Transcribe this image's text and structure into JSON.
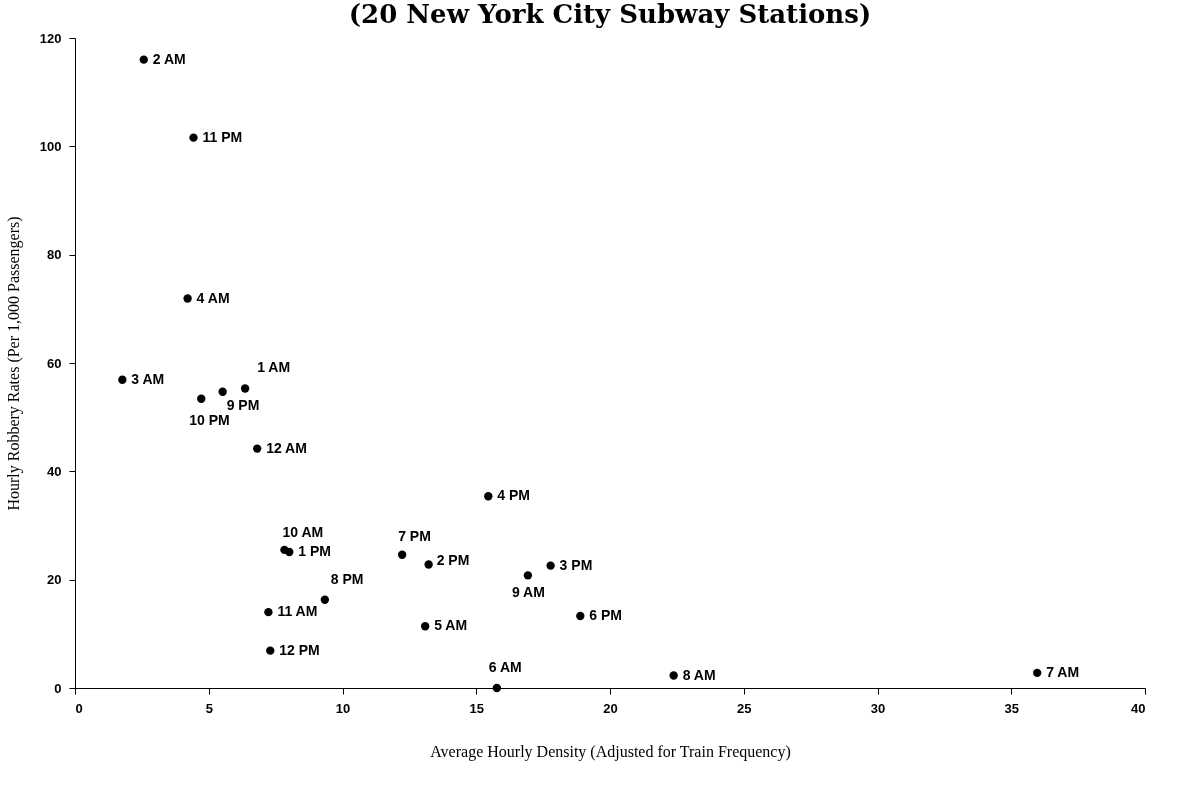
{
  "chart_data": {
    "type": "scatter",
    "title": "(20 New York City Subway Stations)",
    "xlabel": "Average Hourly Density (Adjusted for Train Frequency)",
    "ylabel": "Hourly Robbery Rates (Per 1,000 Passengers)",
    "x": [
      2.57,
      4.43,
      4.21,
      1.77,
      6.36,
      5.52,
      4.72,
      6.81,
      15.45,
      7.83,
      8.01,
      12.23,
      13.22,
      17.78,
      16.93,
      9.34,
      7.23,
      18.89,
      13.09,
      7.3,
      15.77,
      22.38,
      35.97
    ],
    "series": [
      {
        "color": "#000000",
        "values": [
          116.0,
          101.6,
          71.9,
          56.9,
          55.3,
          54.7,
          53.4,
          44.2,
          35.4,
          25.5,
          25.1,
          24.6,
          22.8,
          22.6,
          20.8,
          16.3,
          14.0,
          13.3,
          11.4,
          6.9,
          0,
          2.3,
          2.8
        ]
      }
    ],
    "annotations": [
      {
        "text": "2 AM",
        "x": 2.57,
        "y": 116.0
      },
      {
        "text": "11 PM",
        "x": 4.43,
        "y": 101.6
      },
      {
        "text": "4 AM",
        "x": 4.21,
        "y": 71.9
      },
      {
        "text": "3 AM",
        "x": 1.77,
        "y": 56.9
      },
      {
        "text": "1 AM",
        "x": 6.36,
        "y": 55.3
      },
      {
        "text": "9 PM",
        "x": 5.52,
        "y": 54.7
      },
      {
        "text": "10 PM",
        "x": 4.72,
        "y": 53.4
      },
      {
        "text": "12 AM",
        "x": 6.81,
        "y": 44.2
      },
      {
        "text": "4 PM",
        "x": 15.45,
        "y": 35.4
      },
      {
        "text": "10 AM",
        "x": 7.83,
        "y": 25.5
      },
      {
        "text": "1 PM",
        "x": 8.01,
        "y": 25.1
      },
      {
        "text": "7 PM",
        "x": 12.23,
        "y": 24.6
      },
      {
        "text": "2 PM",
        "x": 13.22,
        "y": 22.8
      },
      {
        "text": "3 PM",
        "x": 17.78,
        "y": 22.6
      },
      {
        "text": "9  AM",
        "x": 16.93,
        "y": 20.8
      },
      {
        "text": "8 PM",
        "x": 9.34,
        "y": 16.3
      },
      {
        "text": "11 AM",
        "x": 7.23,
        "y": 14.0
      },
      {
        "text": "6 PM",
        "x": 18.89,
        "y": 13.3
      },
      {
        "text": "5 AM",
        "x": 13.09,
        "y": 11.4
      },
      {
        "text": "12 PM",
        "x": 7.3,
        "y": 6.9
      },
      {
        "text": "6 AM",
        "x": 15.77,
        "y": 0
      },
      {
        "text": "8 AM",
        "x": 22.38,
        "y": 2.3
      },
      {
        "text": "7 AM",
        "x": 35.97,
        "y": 2.8
      }
    ],
    "marker": "circle",
    "grid": false,
    "xlim": [
      0,
      40
    ],
    "xticks": [
      0,
      5,
      10,
      15,
      20,
      25,
      30,
      35,
      40
    ],
    "ylim": [
      0,
      120
    ],
    "yticks": [
      0,
      20,
      40,
      60,
      80,
      100,
      120
    ]
  }
}
